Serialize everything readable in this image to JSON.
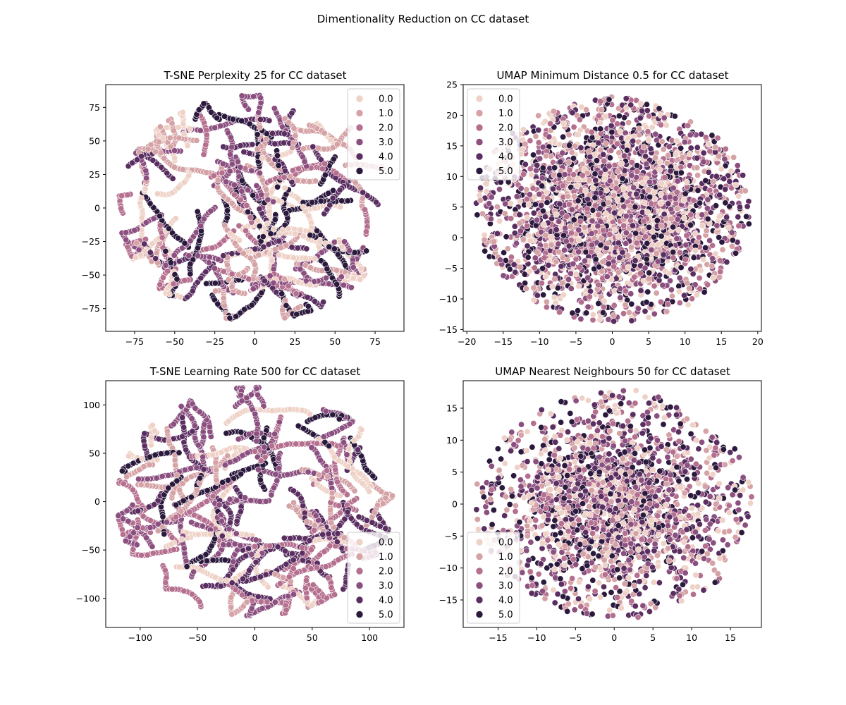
{
  "figure": {
    "suptitle": "Dimentionality Reduction on CC dataset"
  },
  "palette": [
    "#efd2c7",
    "#d5a2a6",
    "#b56f8f",
    "#8b4f80",
    "#5a2e61",
    "#2b1a3d"
  ],
  "chart_data": [
    {
      "type": "scatter",
      "title": "T-SNE Perplexity 25 for CC dataset",
      "xlabel": "",
      "ylabel": "",
      "xlim": [
        -93,
        93
      ],
      "ylim": [
        -92,
        92
      ],
      "xticks": [
        -75,
        -50,
        -25,
        0,
        25,
        50,
        75
      ],
      "xtick_labels": [
        "−75",
        "−50",
        "−25",
        "0",
        "25",
        "50",
        "75"
      ],
      "yticks": [
        -75,
        -50,
        -25,
        0,
        25,
        50,
        75
      ],
      "ytick_labels": [
        "−75",
        "−50",
        "−25",
        "0",
        "25",
        "50",
        "75"
      ],
      "legend": {
        "position": "upper right",
        "entries": [
          "0.0",
          "1.0",
          "2.0",
          "3.0",
          "4.0",
          "5.0"
        ]
      },
      "pattern": "worm",
      "extent": {
        "rx": 85,
        "ry": 84
      },
      "seed": 11,
      "count": 2300,
      "classes": [
        0,
        1,
        2,
        3,
        4,
        5
      ]
    },
    {
      "type": "scatter",
      "title": "UMAP Minimum Distance 0.5 for CC dataset",
      "xlabel": "",
      "ylabel": "",
      "xlim": [
        -20.5,
        20.5
      ],
      "ylim": [
        -15.3,
        25
      ],
      "xticks": [
        -20,
        -15,
        -10,
        -5,
        0,
        5,
        10,
        15,
        20
      ],
      "xtick_labels": [
        "−20",
        "−15",
        "−10",
        "−5",
        "0",
        "5",
        "10",
        "15",
        "20"
      ],
      "yticks": [
        -15,
        -10,
        -5,
        0,
        5,
        10,
        15,
        20,
        25
      ],
      "ytick_labels": [
        "−15",
        "−10",
        "−5",
        "0",
        "5",
        "10",
        "15",
        "20",
        "25"
      ],
      "legend": {
        "position": "upper left",
        "entries": [
          "0.0",
          "1.0",
          "2.0",
          "3.0",
          "4.0",
          "5.0"
        ]
      },
      "pattern": "blob",
      "extent": {
        "cx": 0,
        "cy": 4.5,
        "rx": 19,
        "ry": 18.5
      },
      "seed": 23,
      "count": 3200,
      "classes": [
        0,
        1,
        2,
        3,
        4,
        5
      ]
    },
    {
      "type": "scatter",
      "title": "T-SNE Learning Rate 500 for CC dataset",
      "xlabel": "",
      "ylabel": "",
      "xlim": [
        -130,
        130
      ],
      "ylim": [
        -130,
        125
      ],
      "xticks": [
        -100,
        -50,
        0,
        50,
        100
      ],
      "xtick_labels": [
        "−100",
        "−50",
        "0",
        "50",
        "100"
      ],
      "yticks": [
        -100,
        -50,
        0,
        50,
        100
      ],
      "ytick_labels": [
        "−100",
        "−50",
        "0",
        "50",
        "100"
      ],
      "legend": {
        "position": "lower right",
        "entries": [
          "0.0",
          "1.0",
          "2.0",
          "3.0",
          "4.0",
          "5.0"
        ]
      },
      "pattern": "worm",
      "extent": {
        "rx": 120,
        "ry": 118
      },
      "seed": 37,
      "count": 2300,
      "classes": [
        0,
        1,
        2,
        3,
        4,
        5
      ]
    },
    {
      "type": "scatter",
      "title": "UMAP Nearest Neighbours 50 for CC dataset",
      "xlabel": "",
      "ylabel": "",
      "xlim": [
        -19.5,
        19
      ],
      "ylim": [
        -19.3,
        19.3
      ],
      "xticks": [
        -15,
        -10,
        -5,
        0,
        5,
        10,
        15
      ],
      "xtick_labels": [
        "−15",
        "−10",
        "−5",
        "0",
        "5",
        "10",
        "15"
      ],
      "yticks": [
        -15,
        -10,
        -5,
        0,
        5,
        10,
        15
      ],
      "ytick_labels": [
        "−15",
        "−10",
        "−5",
        "0",
        "5",
        "10",
        "15"
      ],
      "legend": {
        "position": "lower left",
        "entries": [
          "0.0",
          "1.0",
          "2.0",
          "3.0",
          "4.0",
          "5.0"
        ]
      },
      "pattern": "blob",
      "extent": {
        "cx": 0,
        "cy": 0,
        "rx": 18,
        "ry": 18
      },
      "seed": 53,
      "count": 2200,
      "classes": [
        0,
        1,
        2,
        3,
        4,
        5
      ]
    }
  ]
}
